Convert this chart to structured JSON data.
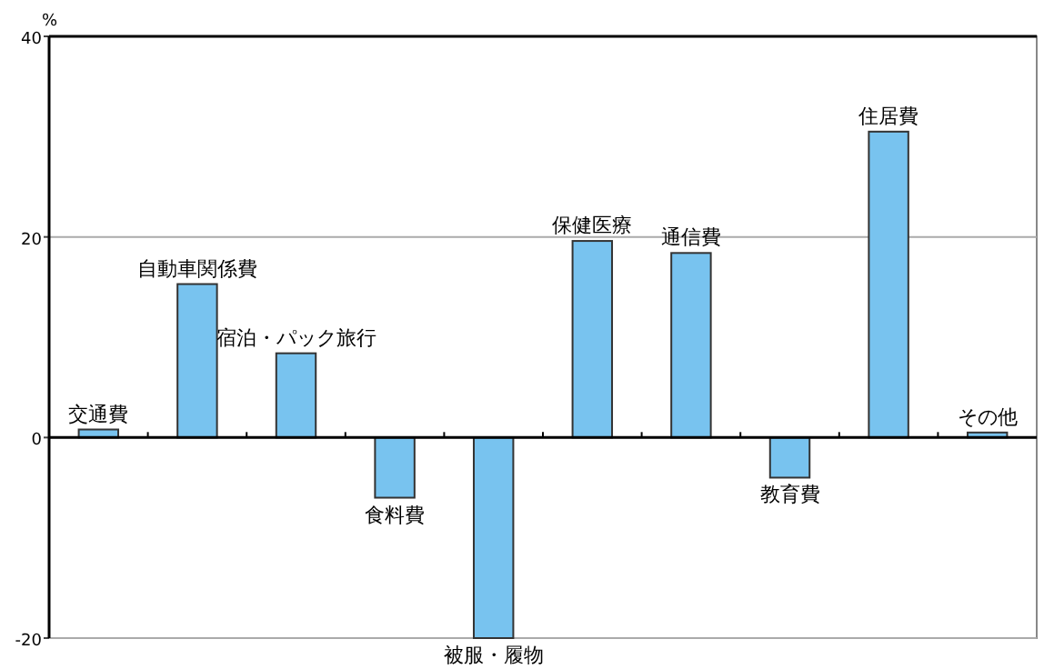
{
  "chart_data": {
    "type": "bar",
    "ylabel": "%",
    "categories": [
      "交通費",
      "自動車関係費",
      "宿泊・パック旅行",
      "食料費",
      "被服・履物",
      "保健医療",
      "通信費",
      "教育費",
      "住居費",
      "その他"
    ],
    "values": [
      0.8,
      15.3,
      8.4,
      -6.0,
      -20,
      19.6,
      18.4,
      -4.0,
      30.5,
      0.5
    ],
    "color": "#78c3ef",
    "ylim": [
      -20,
      40
    ],
    "yticks": [
      -20,
      0,
      20,
      40
    ],
    "grid": "y"
  }
}
